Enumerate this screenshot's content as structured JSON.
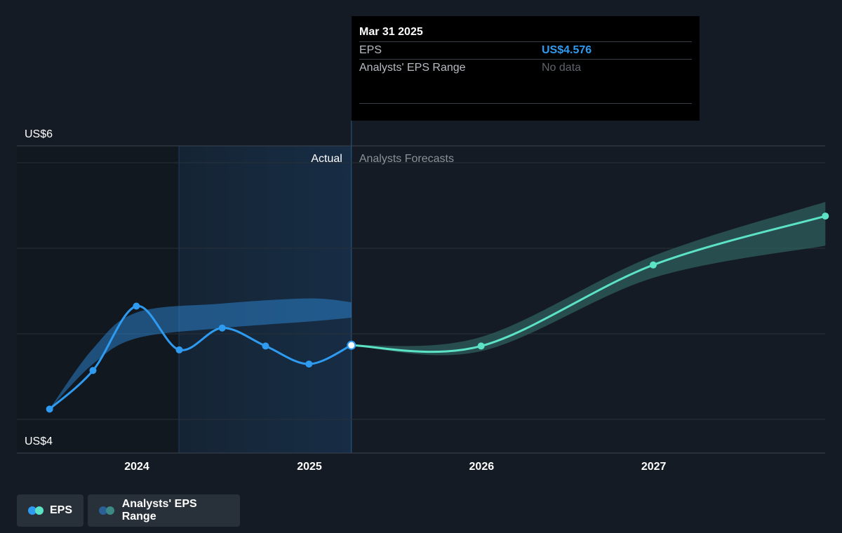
{
  "tooltip": {
    "date": "Mar 31 2025",
    "rows": [
      {
        "label": "EPS",
        "value": "US$4.576"
      },
      {
        "label": "Analysts' EPS Range",
        "value": "No data"
      }
    ]
  },
  "labels": {
    "actual": "Actual",
    "forecast": "Analysts Forecasts"
  },
  "legend": {
    "eps": "EPS",
    "range": "Analysts' EPS Range"
  },
  "colors": {
    "background": "#151b24",
    "eps_actual": "#2f9bf0",
    "eps_forecast": "#5ce3c6",
    "range_actual": "#2b7fc9",
    "range_forecast": "#2e5f5c",
    "tooltip_bg": "#000000"
  },
  "chart_data": {
    "type": "line",
    "x_ticks": [
      "2024",
      "2025",
      "2026",
      "2027"
    ],
    "y_ticks": [
      "US$4",
      "US$6"
    ],
    "ylim": [
      4.0,
      6.0
    ],
    "grid": true,
    "split_date": "2025-03-31",
    "series": [
      {
        "name": "EPS",
        "points": [
          {
            "x": "2023-06-30",
            "y": 4.08
          },
          {
            "x": "2023-09-30",
            "y": 4.38
          },
          {
            "x": "2023-12-31",
            "y": 4.88
          },
          {
            "x": "2024-03-31",
            "y": 4.54
          },
          {
            "x": "2024-06-30",
            "y": 4.71
          },
          {
            "x": "2024-09-30",
            "y": 4.57
          },
          {
            "x": "2024-12-31",
            "y": 4.43
          },
          {
            "x": "2025-03-31",
            "y": 4.576
          },
          {
            "x": "2025-12-31",
            "y": 4.57
          },
          {
            "x": "2026-12-31",
            "y": 5.2
          },
          {
            "x": "2027-12-31",
            "y": 5.58
          }
        ]
      },
      {
        "name": "Analysts' EPS Range",
        "bands": [
          {
            "x": "2023-06-30",
            "low": 4.08,
            "high": 4.08
          },
          {
            "x": "2023-09-30",
            "low": 4.43,
            "high": 4.55
          },
          {
            "x": "2023-12-31",
            "low": 4.63,
            "high": 4.83
          },
          {
            "x": "2024-06-30",
            "low": 4.71,
            "high": 4.9
          },
          {
            "x": "2024-12-31",
            "low": 4.76,
            "high": 4.94
          },
          {
            "x": "2025-03-31",
            "low": 4.79,
            "high": 4.91
          },
          {
            "x": "2025-03-31",
            "low": 4.574,
            "high": 4.578
          },
          {
            "x": "2025-12-31",
            "low": 4.53,
            "high": 4.64
          },
          {
            "x": "2026-12-31",
            "low": 5.1,
            "high": 5.27
          },
          {
            "x": "2027-12-31",
            "low": 5.35,
            "high": 5.69
          }
        ]
      }
    ]
  }
}
